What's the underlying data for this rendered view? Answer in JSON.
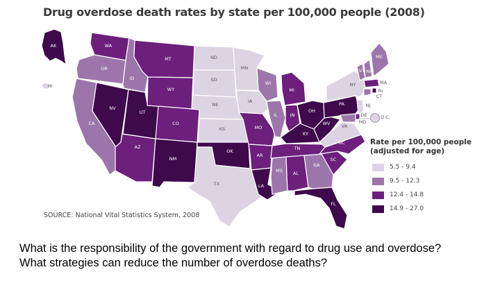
{
  "title": "Drug overdose death rates by state per 100,000 people (2008)",
  "legend": {
    "title_line1": "Rate per 100,000 people",
    "title_line2": "(adjusted for age)",
    "bins": [
      {
        "label": "5.5 - 9.4",
        "color": "#dcd3e3"
      },
      {
        "label": "9.5 - 12.3",
        "color": "#9c76aa"
      },
      {
        "label": "12.4 - 14.8",
        "color": "#6d1f7c"
      },
      {
        "label": "14.9 - 27.0",
        "color": "#3e0a4c"
      }
    ]
  },
  "source": "SOURCE: National Vital Statistics System, 2008",
  "question_line1": "What is the responsibility of the government with regard to drug use and overdose?",
  "question_line2": "What strategies can reduce the number of overdose deaths?",
  "states": {
    "AK": {
      "label": "AK",
      "bin": 3
    },
    "HI": {
      "label": "HI",
      "bin": 0
    },
    "WA": {
      "label": "WA",
      "bin": 2
    },
    "OR": {
      "label": "OR",
      "bin": 1
    },
    "CA": {
      "label": "CA",
      "bin": 1
    },
    "ID": {
      "label": "ID",
      "bin": 1
    },
    "NV": {
      "label": "NV",
      "bin": 3
    },
    "UT": {
      "label": "UT",
      "bin": 3
    },
    "AZ": {
      "label": "AZ",
      "bin": 2
    },
    "MT": {
      "label": "MT",
      "bin": 2
    },
    "WY": {
      "label": "WY",
      "bin": 2
    },
    "CO": {
      "label": "CO",
      "bin": 2
    },
    "NM": {
      "label": "NM",
      "bin": 3
    },
    "ND": {
      "label": "ND",
      "bin": 0
    },
    "SD": {
      "label": "SD",
      "bin": 0
    },
    "NE": {
      "label": "NE",
      "bin": 0
    },
    "KS": {
      "label": "KS",
      "bin": 0
    },
    "OK": {
      "label": "OK",
      "bin": 3
    },
    "TX": {
      "label": "TX",
      "bin": 0
    },
    "MN": {
      "label": "MN",
      "bin": 0
    },
    "IA": {
      "label": "IA",
      "bin": 0
    },
    "MO": {
      "label": "MO",
      "bin": 2
    },
    "AR": {
      "label": "AR",
      "bin": 2
    },
    "LA": {
      "label": "LA",
      "bin": 3
    },
    "WI": {
      "label": "WI",
      "bin": 1
    },
    "IL": {
      "label": "IL",
      "bin": 1
    },
    "MI": {
      "label": "MI",
      "bin": 2
    },
    "IN": {
      "label": "IN",
      "bin": 2
    },
    "OH": {
      "label": "OH",
      "bin": 3
    },
    "KY": {
      "label": "KY",
      "bin": 3
    },
    "TN": {
      "label": "TN",
      "bin": 2
    },
    "MS": {
      "label": "MS",
      "bin": 1
    },
    "AL": {
      "label": "AL",
      "bin": 2
    },
    "GA": {
      "label": "GA",
      "bin": 1
    },
    "FL": {
      "label": "FL",
      "bin": 3
    },
    "SC": {
      "label": "SC",
      "bin": 2
    },
    "NC": {
      "label": "NC",
      "bin": 2
    },
    "VA": {
      "label": "VA",
      "bin": 0
    },
    "WV": {
      "label": "WV",
      "bin": 3
    },
    "PA": {
      "label": "PA",
      "bin": 3
    },
    "NY": {
      "label": "NY",
      "bin": 0
    },
    "VT": {
      "label": "VT",
      "bin": 1
    },
    "NH": {
      "label": "NH",
      "bin": 1
    },
    "ME": {
      "label": "ME",
      "bin": 1
    },
    "MA": {
      "label": "MA",
      "bin": 2
    },
    "CT": {
      "label": "CT",
      "bin": 1
    },
    "RI": {
      "label": "RI",
      "bin": 3
    },
    "NJ": {
      "label": "NJ",
      "bin": 0
    },
    "DE": {
      "label": "DE",
      "bin": 2
    },
    "MD": {
      "label": "MD",
      "bin": 1
    },
    "DC": {
      "label": "D.C.",
      "bin": 0
    }
  }
}
